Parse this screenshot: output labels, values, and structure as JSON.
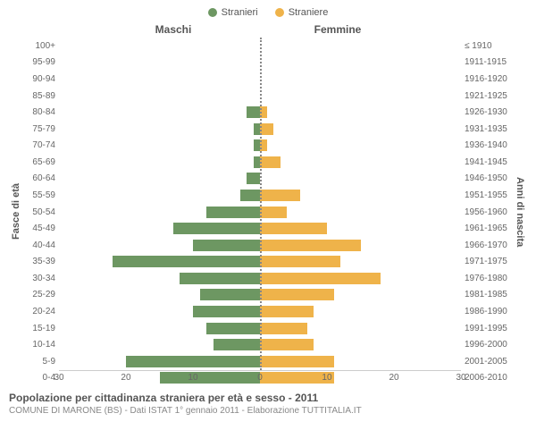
{
  "chart": {
    "type": "population-pyramid",
    "legend": {
      "male": {
        "label": "Stranieri",
        "color": "#6d9762"
      },
      "female": {
        "label": "Straniere",
        "color": "#efb34a"
      }
    },
    "headers": {
      "left": "Maschi",
      "right": "Femmine"
    },
    "y_left_label": "Fasce di età",
    "y_right_label": "Anni di nascita",
    "x_max": 30,
    "x_ticks": [
      30,
      20,
      10,
      0,
      10,
      20,
      30
    ],
    "axis_color": "#888",
    "bar_height_pct": 70,
    "rows": [
      {
        "age": "100+",
        "birth": "≤ 1910",
        "m": 0,
        "f": 0
      },
      {
        "age": "95-99",
        "birth": "1911-1915",
        "m": 0,
        "f": 0
      },
      {
        "age": "90-94",
        "birth": "1916-1920",
        "m": 0,
        "f": 0
      },
      {
        "age": "85-89",
        "birth": "1921-1925",
        "m": 0,
        "f": 0
      },
      {
        "age": "80-84",
        "birth": "1926-1930",
        "m": 2,
        "f": 1
      },
      {
        "age": "75-79",
        "birth": "1931-1935",
        "m": 1,
        "f": 2
      },
      {
        "age": "70-74",
        "birth": "1936-1940",
        "m": 1,
        "f": 1
      },
      {
        "age": "65-69",
        "birth": "1941-1945",
        "m": 1,
        "f": 3
      },
      {
        "age": "60-64",
        "birth": "1946-1950",
        "m": 2,
        "f": 0
      },
      {
        "age": "55-59",
        "birth": "1951-1955",
        "m": 3,
        "f": 6
      },
      {
        "age": "50-54",
        "birth": "1956-1960",
        "m": 8,
        "f": 4
      },
      {
        "age": "45-49",
        "birth": "1961-1965",
        "m": 13,
        "f": 10
      },
      {
        "age": "40-44",
        "birth": "1966-1970",
        "m": 10,
        "f": 15
      },
      {
        "age": "35-39",
        "birth": "1971-1975",
        "m": 22,
        "f": 12
      },
      {
        "age": "30-34",
        "birth": "1976-1980",
        "m": 12,
        "f": 18
      },
      {
        "age": "25-29",
        "birth": "1981-1985",
        "m": 9,
        "f": 11
      },
      {
        "age": "20-24",
        "birth": "1986-1990",
        "m": 10,
        "f": 8
      },
      {
        "age": "15-19",
        "birth": "1991-1995",
        "m": 8,
        "f": 7
      },
      {
        "age": "10-14",
        "birth": "1996-2000",
        "m": 7,
        "f": 8
      },
      {
        "age": "5-9",
        "birth": "2001-2005",
        "m": 20,
        "f": 11
      },
      {
        "age": "0-4",
        "birth": "2006-2010",
        "m": 15,
        "f": 11
      }
    ]
  },
  "footer": {
    "title": "Popolazione per cittadinanza straniera per età e sesso - 2011",
    "subtitle": "COMUNE DI MARONE (BS) - Dati ISTAT 1° gennaio 2011 - Elaborazione TUTTITALIA.IT"
  }
}
